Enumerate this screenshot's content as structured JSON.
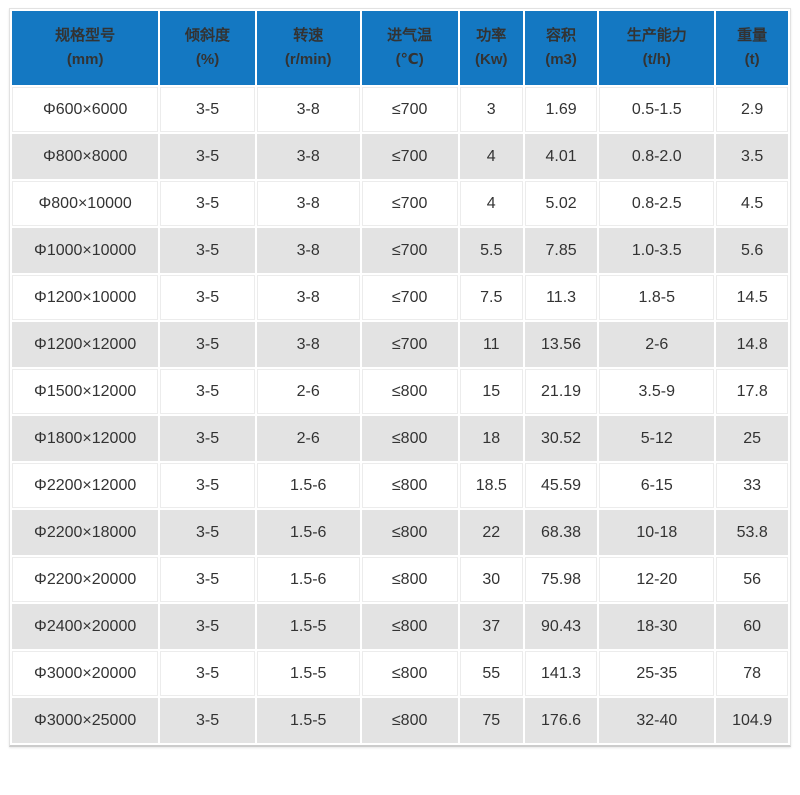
{
  "chart_data": {
    "type": "table",
    "title": "",
    "columns": [
      {
        "label": "规格型号",
        "unit": "(mm)"
      },
      {
        "label": "倾斜度",
        "unit": "(%)"
      },
      {
        "label": "转速",
        "unit": "(r/min)"
      },
      {
        "label": "进气温",
        "unit": "(℃)"
      },
      {
        "label": "功率",
        "unit": "(Kw)"
      },
      {
        "label": "容积",
        "unit": "(m3)"
      },
      {
        "label": "生产能力",
        "unit": "(t/h)"
      },
      {
        "label": "重量",
        "unit": "(t)"
      }
    ],
    "rows": [
      [
        "Φ600×6000",
        "3-5",
        "3-8",
        "≤700",
        "3",
        "1.69",
        "0.5-1.5",
        "2.9"
      ],
      [
        "Φ800×8000",
        "3-5",
        "3-8",
        "≤700",
        "4",
        "4.01",
        "0.8-2.0",
        "3.5"
      ],
      [
        "Φ800×10000",
        "3-5",
        "3-8",
        "≤700",
        "4",
        "5.02",
        "0.8-2.5",
        "4.5"
      ],
      [
        "Φ1000×10000",
        "3-5",
        "3-8",
        "≤700",
        "5.5",
        "7.85",
        "1.0-3.5",
        "5.6"
      ],
      [
        "Φ1200×10000",
        "3-5",
        "3-8",
        "≤700",
        "7.5",
        "11.3",
        "1.8-5",
        "14.5"
      ],
      [
        "Φ1200×12000",
        "3-5",
        "3-8",
        "≤700",
        "11",
        "13.56",
        "2-6",
        "14.8"
      ],
      [
        "Φ1500×12000",
        "3-5",
        "2-6",
        "≤800",
        "15",
        "21.19",
        "3.5-9",
        "17.8"
      ],
      [
        "Φ1800×12000",
        "3-5",
        "2-6",
        "≤800",
        "18",
        "30.52",
        "5-12",
        "25"
      ],
      [
        "Φ2200×12000",
        "3-5",
        "1.5-6",
        "≤800",
        "18.5",
        "45.59",
        "6-15",
        "33"
      ],
      [
        "Φ2200×18000",
        "3-5",
        "1.5-6",
        "≤800",
        "22",
        "68.38",
        "10-18",
        "53.8"
      ],
      [
        "Φ2200×20000",
        "3-5",
        "1.5-6",
        "≤800",
        "30",
        "75.98",
        "12-20",
        "56"
      ],
      [
        "Φ2400×20000",
        "3-5",
        "1.5-5",
        "≤800",
        "37",
        "90.43",
        "18-30",
        "60"
      ],
      [
        "Φ3000×20000",
        "3-5",
        "1.5-5",
        "≤800",
        "55",
        "141.3",
        "25-35",
        "78"
      ],
      [
        "Φ3000×25000",
        "3-5",
        "1.5-5",
        "≤800",
        "75",
        "176.6",
        "32-40",
        "104.9"
      ]
    ],
    "layout_hints": {
      "header_position": "top",
      "zebra_striping": true,
      "first_row_stripe": "white",
      "grid": true
    }
  },
  "colors": {
    "header_bg": "#1478c2",
    "alt_row_bg": "#e3e3e3",
    "text": "#333333",
    "cell_border": "#ececec",
    "outer_border": "#e2e2e2",
    "outer_border_bottom": "#cccccc"
  }
}
